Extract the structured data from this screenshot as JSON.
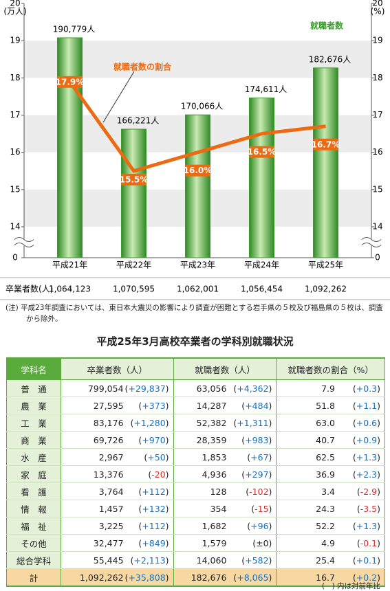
{
  "chart_data": {
    "type": "bar",
    "categories": [
      "平成21年",
      "平成22年",
      "平成23年",
      "平成24年",
      "平成25年"
    ],
    "series": [
      {
        "name": "就職者数",
        "color": "#3d9b2e",
        "values": [
          19.0779,
          16.6221,
          17.0066,
          17.4611,
          18.2676
        ],
        "value_labels": [
          "190,779人",
          "166,221人",
          "170,066人",
          "174,611人",
          "182,676人"
        ]
      },
      {
        "name": "就職者数の割合",
        "type": "line",
        "axis": "y2",
        "color": "#ec6a12",
        "values": [
          17.9,
          15.5,
          16.0,
          16.5,
          16.7
        ],
        "value_labels": [
          "17.9%",
          "15.5%",
          "16.0%",
          "16.5%",
          "16.7%"
        ]
      }
    ],
    "ylim": [
      14,
      20
    ],
    "yticks": [
      0,
      14,
      15,
      16,
      17,
      18,
      19,
      20
    ],
    "y_unit": "(万人)",
    "y2lim": [
      14,
      20
    ],
    "y2ticks": [
      0,
      14,
      15,
      16,
      17,
      18,
      19,
      20
    ],
    "y2_unit": "(%)",
    "axis_break": true,
    "grid": "bands"
  },
  "graduates": {
    "label": "卒業者数(人)",
    "values": [
      "1,064,123",
      "1,070,595",
      "1,062,001",
      "1,056,454",
      "1,092,262"
    ]
  },
  "note": "(注) 平成23年調査においては、東日本大震災の影響により調査が困難とする岩手県の５校及び福島県の５校は、調査から除外。",
  "table": {
    "title": "平成25年3月高校卒業者の学科別就職状況",
    "header": [
      "学科名",
      "卒業者数（人）",
      "就職者数（人）",
      "就職者数の割合（%）"
    ],
    "rows": [
      [
        "普　通",
        "799,054",
        "(+29,837)",
        "63,056",
        "(+4,362)",
        "7.9",
        "(+0.3)"
      ],
      [
        "農　業",
        "27,595",
        "(+373)",
        "14,287",
        "(+484)",
        "51.8",
        "(+1.1)"
      ],
      [
        "工　業",
        "83,176",
        "(+1,280)",
        "52,382",
        "(+1,311)",
        "63.0",
        "(+0.6)"
      ],
      [
        "商　業",
        "69,726",
        "(+970)",
        "28,359",
        "(+983)",
        "40.7",
        "(+0.9)"
      ],
      [
        "水　産",
        "2,967",
        "(+50)",
        "1,853",
        "(+67)",
        "62.5",
        "(+1.3)"
      ],
      [
        "家　庭",
        "13,376",
        "(-20)",
        "4,936",
        "(+297)",
        "36.9",
        "(+2.3)"
      ],
      [
        "看　護",
        "3,764",
        "(+112)",
        "128",
        "(-102)",
        "3.4",
        "(-2.9)"
      ],
      [
        "情　報",
        "1,457",
        "(+132)",
        "354",
        "(-15)",
        "24.3",
        "(-3.5)"
      ],
      [
        "福　祉",
        "3,225",
        "(+112)",
        "1,682",
        "(+96)",
        "52.2",
        "(+1.3)"
      ],
      [
        "その他",
        "32,477",
        "(+849)",
        "1,579",
        "(±0)",
        "4.9",
        "(-0.1)"
      ],
      [
        "総合学科",
        "55,445",
        "(+2,113)",
        "14,060",
        "(+582)",
        "25.4",
        "(+0.1)"
      ],
      [
        "計",
        "1,092,262",
        "(+35,808)",
        "182,676",
        "(+8,065)",
        "16.7",
        "(+0.2)"
      ]
    ]
  },
  "footer": "(　) 内は対前年比"
}
